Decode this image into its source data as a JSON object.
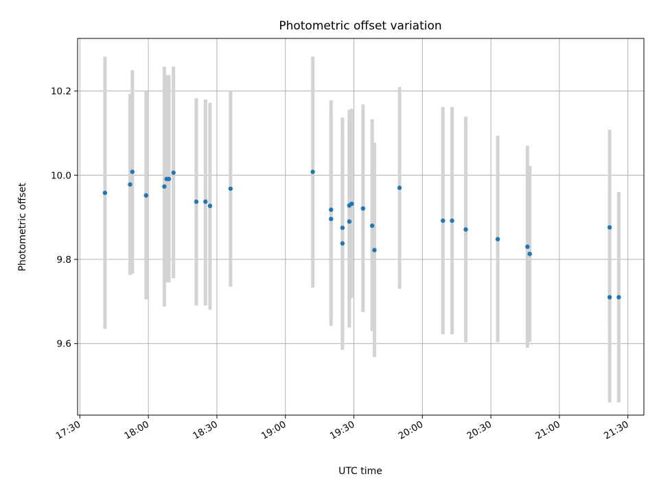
{
  "chart_data": {
    "type": "scatter",
    "title": "Photometric offset variation",
    "xlabel": "UTC time",
    "ylabel": "Photometric offset",
    "x_ticks": [
      "17:30",
      "18:00",
      "18:30",
      "19:00",
      "19:30",
      "20:00",
      "20:30",
      "21:00",
      "21:30"
    ],
    "y_ticks": [
      "9.6",
      "9.8",
      "10.0",
      "10.2"
    ],
    "xlim": [
      "17:29",
      "21:37"
    ],
    "ylim": [
      9.43,
      10.325
    ],
    "grid": true,
    "colors": {
      "points": "#1f77b4",
      "errorbars": "#d3d3d3",
      "grid": "#b0b0b0"
    },
    "points": [
      {
        "x": "17:41",
        "y": 9.958,
        "ylo": 9.635,
        "yhi": 10.282
      },
      {
        "x": "17:52",
        "y": 9.978,
        "ylo": 9.763,
        "yhi": 10.193
      },
      {
        "x": "17:53",
        "y": 10.008,
        "ylo": 9.766,
        "yhi": 10.25
      },
      {
        "x": "17:59",
        "y": 9.952,
        "ylo": 9.705,
        "yhi": 10.2
      },
      {
        "x": "18:07",
        "y": 9.973,
        "ylo": 9.688,
        "yhi": 10.258
      },
      {
        "x": "18:08",
        "y": 9.991,
        "ylo": 9.745,
        "yhi": 10.238
      },
      {
        "x": "18:09",
        "y": 9.991,
        "ylo": 9.745,
        "yhi": 10.238
      },
      {
        "x": "18:11",
        "y": 10.006,
        "ylo": 9.755,
        "yhi": 10.258
      },
      {
        "x": "18:21",
        "y": 9.937,
        "ylo": 9.69,
        "yhi": 10.183
      },
      {
        "x": "18:25",
        "y": 9.937,
        "ylo": 9.69,
        "yhi": 10.18
      },
      {
        "x": "18:27",
        "y": 9.927,
        "ylo": 9.68,
        "yhi": 10.172
      },
      {
        "x": "18:36",
        "y": 9.968,
        "ylo": 9.735,
        "yhi": 10.2
      },
      {
        "x": "19:12",
        "y": 10.008,
        "ylo": 9.733,
        "yhi": 10.282
      },
      {
        "x": "19:20",
        "y": 9.918,
        "ylo": 9.657,
        "yhi": 10.178
      },
      {
        "x": "19:20",
        "y": 9.896,
        "ylo": 9.642,
        "yhi": 10.15
      },
      {
        "x": "19:25",
        "y": 9.875,
        "ylo": 9.613,
        "yhi": 10.137
      },
      {
        "x": "19:25",
        "y": 9.838,
        "ylo": 9.585,
        "yhi": 10.092
      },
      {
        "x": "19:28",
        "y": 9.89,
        "ylo": 9.638,
        "yhi": 10.14
      },
      {
        "x": "19:28",
        "y": 9.928,
        "ylo": 9.7,
        "yhi": 10.155
      },
      {
        "x": "19:29",
        "y": 9.932,
        "ylo": 9.708,
        "yhi": 10.158
      },
      {
        "x": "19:34",
        "y": 9.921,
        "ylo": 9.675,
        "yhi": 10.168
      },
      {
        "x": "19:38",
        "y": 9.88,
        "ylo": 9.63,
        "yhi": 10.133
      },
      {
        "x": "19:39",
        "y": 9.822,
        "ylo": 9.568,
        "yhi": 10.077
      },
      {
        "x": "19:50",
        "y": 9.97,
        "ylo": 9.73,
        "yhi": 10.21
      },
      {
        "x": "20:09",
        "y": 9.892,
        "ylo": 9.622,
        "yhi": 10.162
      },
      {
        "x": "20:13",
        "y": 9.892,
        "ylo": 9.622,
        "yhi": 10.162
      },
      {
        "x": "20:19",
        "y": 9.871,
        "ylo": 9.603,
        "yhi": 10.139
      },
      {
        "x": "20:33",
        "y": 9.848,
        "ylo": 9.603,
        "yhi": 10.094
      },
      {
        "x": "20:46",
        "y": 9.83,
        "ylo": 9.59,
        "yhi": 10.07
      },
      {
        "x": "20:47",
        "y": 9.813,
        "ylo": 9.604,
        "yhi": 10.022
      },
      {
        "x": "21:22",
        "y": 9.876,
        "ylo": 9.643,
        "yhi": 10.108
      },
      {
        "x": "21:22",
        "y": 9.71,
        "ylo": 9.46,
        "yhi": 9.96
      },
      {
        "x": "21:26",
        "y": 9.71,
        "ylo": 9.46,
        "yhi": 9.96
      }
    ]
  }
}
